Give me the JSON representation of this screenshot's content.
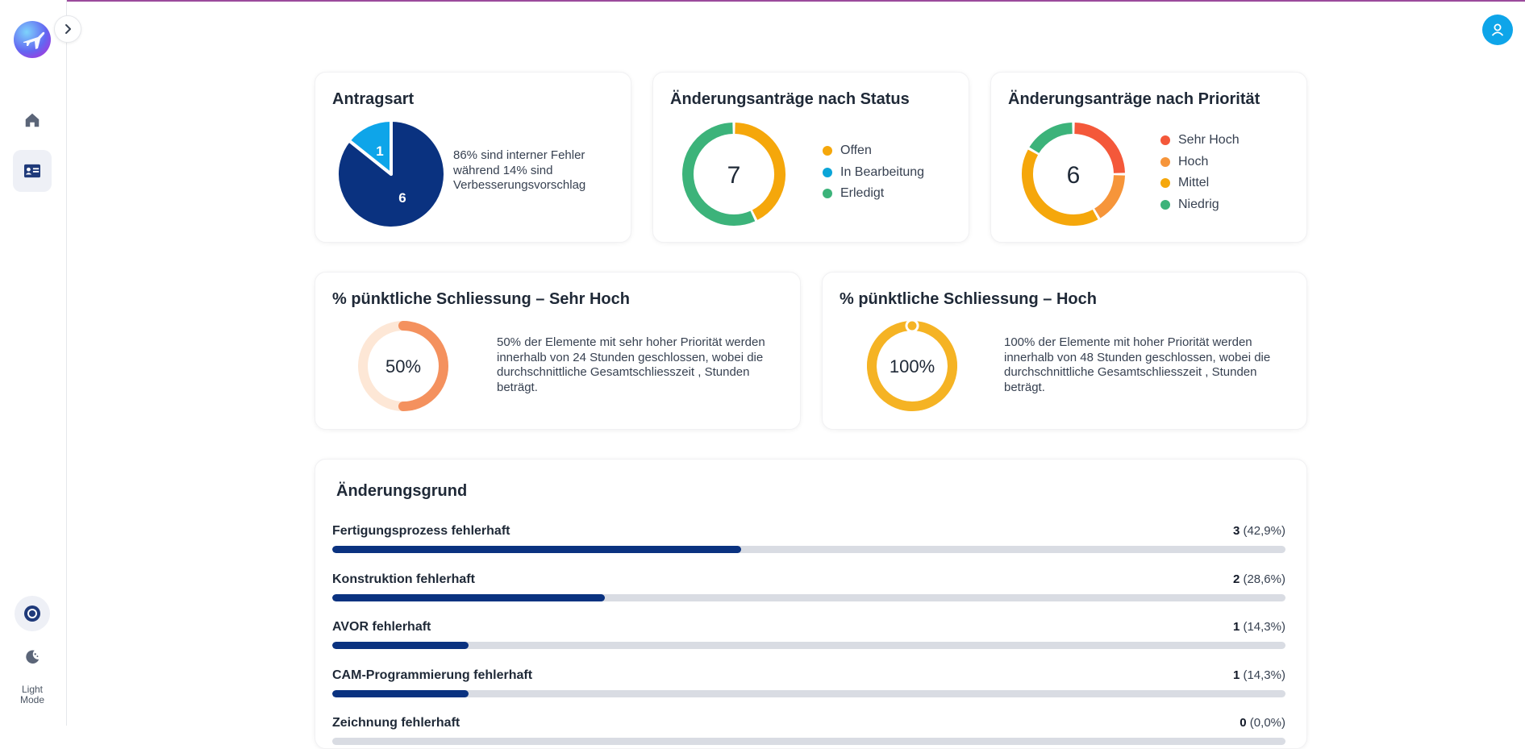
{
  "sidebar": {
    "mode_label": "Light\nMode"
  },
  "cards": {
    "antragsart": {
      "title": "Antragsart",
      "description": "86% sind interner Fehler während 14% sind Verbesserungsvorschlag",
      "colors": {
        "primary": "#0a3280",
        "secondary": "#0ea5e9"
      }
    },
    "status": {
      "title": "Änderungsanträge nach Status",
      "legend": [
        {
          "label": "Offen",
          "color": "#f5a70b"
        },
        {
          "label": "In Bearbeitung",
          "color": "#0ba5d8"
        },
        {
          "label": "Erledigt",
          "color": "#3cb37a"
        }
      ]
    },
    "prioritaet": {
      "title": "Änderungsanträge nach Priorität",
      "legend": [
        {
          "label": "Sehr Hoch",
          "color": "#f4583a"
        },
        {
          "label": "Hoch",
          "color": "#f6953a"
        },
        {
          "label": "Mittel",
          "color": "#f5a70b"
        },
        {
          "label": "Niedrig",
          "color": "#3cb37a"
        }
      ]
    },
    "schliessung_sehr_hoch": {
      "title": "% pünktliche Schliessung – Sehr Hoch",
      "description": "50% der Elemente mit sehr hoher Priorität werden innerhalb von 24 Stunden geschlossen, wobei die durchschnittliche Gesamtschliesszeit , Stunden beträgt."
    },
    "schliessung_hoch": {
      "title": "% pünktliche Schliessung – Hoch",
      "description": "100% der Elemente mit hoher Priorität werden innerhalb von 48 Stunden geschlossen, wobei die durchschnittliche Gesamtschliesszeit , Stunden beträgt."
    },
    "aenderungsgrund": {
      "title": "Änderungsgrund"
    }
  },
  "chart_data": [
    {
      "type": "pie",
      "title": "Antragsart",
      "labels": [
        "interner Fehler",
        "Verbesserungsvorschlag"
      ],
      "values": [
        6,
        1
      ],
      "value_labels": [
        "6",
        "1"
      ],
      "colors": [
        "#0a3280",
        "#0ea5e9"
      ]
    },
    {
      "type": "pie",
      "variant": "donut",
      "title": "Änderungsanträge nach Status",
      "labels": [
        "Offen",
        "In Bearbeitung",
        "Erledigt"
      ],
      "values": [
        3,
        0,
        4
      ],
      "center_label": "7",
      "colors": [
        "#f5a70b",
        "#0ba5d8",
        "#3cb37a"
      ]
    },
    {
      "type": "pie",
      "variant": "donut",
      "title": "Änderungsanträge nach Priorität",
      "labels": [
        "Sehr Hoch",
        "Hoch",
        "Mittel",
        "Niedrig"
      ],
      "values": [
        1.5,
        1,
        2.5,
        1
      ],
      "center_label": "6",
      "colors": [
        "#f4583a",
        "#f6953a",
        "#f5a70b",
        "#3cb37a"
      ]
    },
    {
      "type": "pie",
      "variant": "gauge",
      "title": "% pünktliche Schliessung – Sehr Hoch",
      "value_percent": 50,
      "center_label": "50%",
      "colors": [
        "#f4915e",
        "#fde7d6"
      ]
    },
    {
      "type": "pie",
      "variant": "gauge",
      "title": "% pünktliche Schliessung – Hoch",
      "value_percent": 100,
      "center_label": "100%",
      "colors": [
        "#f5b324",
        "#fcd468"
      ]
    },
    {
      "type": "bar",
      "orientation": "horizontal",
      "title": "Änderungsgrund",
      "categories": [
        "Fertigungsprozess fehlerhaft",
        "Konstruktion fehlerhaft",
        "AVOR fehlerhaft",
        "CAM-Programmierung fehlerhaft",
        "Zeichnung fehlerhaft"
      ],
      "values": [
        3,
        2,
        1,
        1,
        0
      ],
      "count_labels": [
        "3",
        "2",
        "1",
        "1",
        "0"
      ],
      "percent_labels": [
        "(42,9%)",
        "(28,6%)",
        "(14,3%)",
        "(14,3%)",
        "(0,0%)"
      ],
      "max": 7,
      "color": "#0a3280"
    }
  ]
}
